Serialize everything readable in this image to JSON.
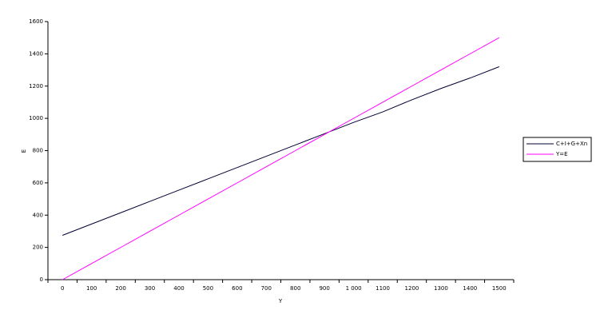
{
  "chart_data": {
    "type": "line",
    "x_label": "Y",
    "y_label": "E",
    "categories": [
      "0",
      "100",
      "200",
      "300",
      "400",
      "500",
      "600",
      "700",
      "800",
      "900",
      "1 000",
      "1100",
      "1200",
      "1300",
      "1400",
      "1500"
    ],
    "series": [
      {
        "name": "C+I+G+Xn",
        "color": "#000033",
        "values": [
          275,
          345,
          415,
          485,
          555,
          625,
          695,
          765,
          835,
          905,
          975,
          1040,
          1115,
          1185,
          1250,
          1320
        ]
      },
      {
        "name": "Y=E",
        "color": "#ff00ff",
        "values": [
          0,
          100,
          200,
          300,
          400,
          500,
          600,
          700,
          800,
          900,
          1000,
          1100,
          1200,
          1300,
          1400,
          1500
        ]
      }
    ],
    "ylim": [
      0,
      1600
    ],
    "yticks": [
      0,
      200,
      400,
      600,
      800,
      1000,
      1200,
      1400,
      1600
    ],
    "legend": "right"
  }
}
